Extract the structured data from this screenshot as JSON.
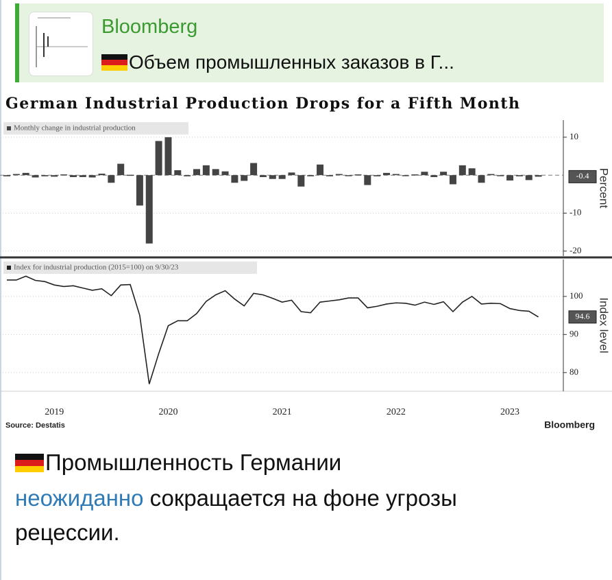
{
  "reply": {
    "author": "Bloomberg",
    "text": "Объем промышленных заказов в Г..."
  },
  "chart_data": [
    {
      "type": "bar",
      "title": "German Industrial Production Drops for a Fifth Month",
      "ylabel": "Percent",
      "ylim": [
        -21.3,
        14.5
      ],
      "yticks": [
        -20,
        -10,
        10
      ],
      "grid": true,
      "categories": [
        null,
        null,
        null,
        null,
        null,
        null,
        null,
        null,
        null,
        null,
        null,
        null,
        null,
        null,
        null,
        null,
        null,
        null,
        null,
        null,
        null,
        null,
        null,
        null,
        null,
        null,
        null,
        null,
        null,
        null,
        null,
        null,
        null,
        null,
        null,
        null,
        null,
        null,
        null,
        null,
        null,
        null,
        null,
        null,
        null,
        null,
        null,
        null,
        null,
        null,
        null,
        null,
        null,
        null,
        null,
        null,
        null
      ],
      "series": [
        {
          "name": "Monthly change in industrial production",
          "color": "#444444",
          "values": [
            -0.3,
            0.3,
            0.6,
            -0.6,
            -0.3,
            -0.4,
            0.2,
            -0.5,
            -0.5,
            -0.6,
            0.4,
            -2.0,
            3.0,
            0.1,
            -8.0,
            -18.0,
            9.0,
            10.0,
            1.3,
            -0.3,
            1.6,
            2.6,
            1.6,
            1.0,
            -2.0,
            -1.5,
            3.2,
            -0.5,
            -1.0,
            -1.0,
            0.7,
            -3.0,
            -0.3,
            2.8,
            -0.3,
            0.3,
            -0.2,
            0.2,
            -2.6,
            -0.3,
            0.6,
            0.3,
            -0.2,
            0.2,
            0.9,
            -0.5,
            0.9,
            -2.4,
            2.6,
            1.8,
            -2.0,
            0.3,
            -0.2,
            -1.4,
            -0.3,
            -1.3,
            -0.4
          ]
        }
      ]
    },
    {
      "type": "line",
      "ylabel": "Index level",
      "ylim": [
        75.1,
        109.7
      ],
      "yticks": [
        80,
        90,
        100
      ],
      "grid": true,
      "source": "Source: Destatis",
      "brand": "Bloomberg",
      "categories": [
        null,
        null,
        null,
        null,
        null,
        "2019",
        null,
        null,
        null,
        null,
        null,
        null,
        null,
        null,
        null,
        null,
        null,
        "2020",
        null,
        null,
        null,
        null,
        null,
        null,
        null,
        null,
        null,
        null,
        null,
        "2021",
        null,
        null,
        null,
        null,
        null,
        null,
        null,
        null,
        null,
        null,
        null,
        "2022",
        null,
        null,
        null,
        null,
        null,
        null,
        null,
        null,
        null,
        null,
        null,
        "2023",
        null,
        null,
        null
      ],
      "series": [
        {
          "name": "Index for industrial production (2015=100)  on 9/30/23",
          "color": "#222222",
          "values": [
            104.3,
            104.3,
            105.3,
            104.2,
            103.9,
            103.0,
            102.6,
            102.8,
            102.2,
            101.6,
            102.0,
            100.2,
            103.0,
            103.1,
            95.0,
            77.0,
            85.0,
            92.3,
            93.6,
            93.6,
            95.5,
            98.7,
            100.4,
            101.5,
            99.3,
            97.5,
            100.8,
            100.4,
            99.5,
            98.5,
            99.0,
            96.0,
            95.7,
            98.5,
            98.8,
            99.1,
            99.6,
            99.6,
            97.0,
            97.4,
            98.0,
            98.3,
            98.2,
            97.7,
            98.5,
            97.9,
            98.6,
            96.0,
            98.5,
            100.0,
            98.0,
            98.2,
            98.1,
            96.8,
            96.3,
            96.1,
            94.6
          ]
        }
      ]
    }
  ],
  "message": {
    "line1": "Промышленность Германии",
    "link": "неожиданно",
    "rest": "сокращается на фоне угрозы",
    "line3": "рецессии."
  }
}
